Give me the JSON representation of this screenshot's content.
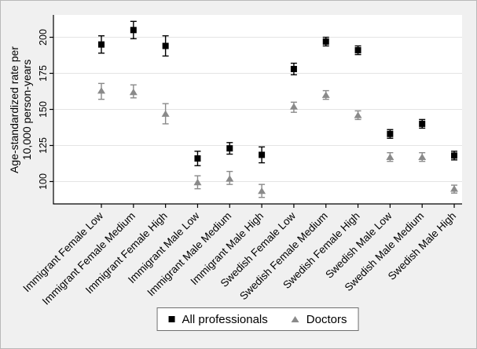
{
  "figure": {
    "ylabel_line1": "Age-standardized rate per",
    "ylabel_line2": "10,000 person-years"
  },
  "colors": {
    "figure_background": "#f0f0f0",
    "plot_background": "#ffffff",
    "gridline": "#e4e4e4",
    "axis": "#000000",
    "series_all_professionals": "#000000",
    "series_doctors": "#8a8a8a",
    "legend_border": "#6e6e6e"
  },
  "legend": {
    "items": [
      {
        "label": "All professionals",
        "marker": "square",
        "color": "#000000"
      },
      {
        "label": "Doctors",
        "marker": "triangle",
        "color": "#8a8a8a"
      }
    ]
  },
  "chart_data": {
    "type": "scatter",
    "title": "",
    "xlabel": "",
    "ylabel": "Age-standardized rate per 10,000 person-years",
    "ylim": [
      84.5,
      215.5
    ],
    "yticks": [
      "100",
      "125",
      "150",
      "175",
      "200"
    ],
    "grid": true,
    "legend_position": "bottom-center",
    "categories": [
      "Immigrant Female Low",
      "Immigrant Female Medium",
      "Immigrant Female High",
      "Immigrant Male Low",
      "Immigrant Male Medium",
      "Immigrant Male High",
      "Swedish Female Low",
      "Swedish Female Medium",
      "Swedish Female High",
      "Swedish Male Low",
      "Swedish Male Medium",
      "Swedish Male High"
    ],
    "series": [
      {
        "name": "All professionals",
        "marker": "square",
        "color": "#000000",
        "values": [
          195,
          205,
          194,
          116,
          123,
          118.5,
          178,
          197,
          191,
          133,
          140,
          118
        ],
        "ci_low": [
          189,
          199,
          187,
          111,
          119,
          113,
          174,
          194,
          188,
          130,
          137,
          115
        ],
        "ci_high": [
          201,
          211,
          201,
          121,
          127,
          124,
          182,
          200,
          194,
          136,
          143,
          121
        ]
      },
      {
        "name": "Doctors",
        "marker": "triangle",
        "color": "#8a8a8a",
        "values": [
          163,
          162,
          147,
          99.5,
          102,
          93.5,
          152,
          160,
          146,
          117,
          117,
          95
        ],
        "ci_low": [
          157,
          158,
          140,
          95,
          98,
          89,
          148,
          157,
          143,
          114,
          114,
          92
        ],
        "ci_high": [
          168,
          167,
          154,
          104,
          107,
          98,
          155,
          163,
          149,
          120,
          120,
          97.5
        ]
      }
    ]
  }
}
